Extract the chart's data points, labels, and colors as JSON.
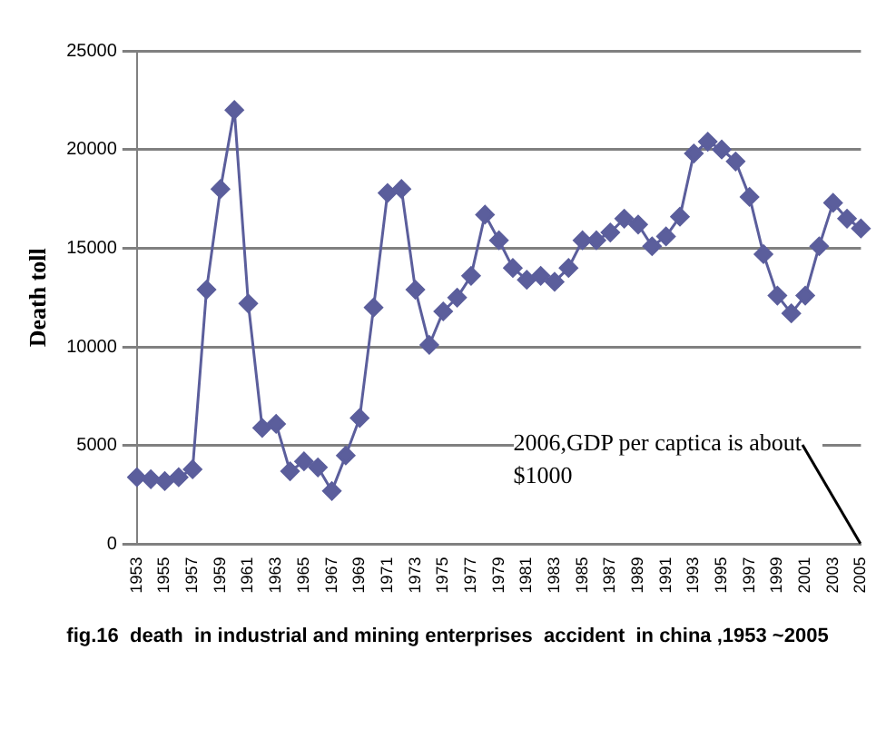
{
  "chart_data": {
    "type": "line",
    "title": "fig.16  death  in industrial and mining enterprises  accident  in china ,1953 ~2005",
    "ylabel": "Death toll",
    "categories": [
      "1953",
      null,
      "1955",
      null,
      "1957",
      null,
      "1959",
      null,
      "1961",
      null,
      "1963",
      null,
      "1965",
      null,
      "1967",
      null,
      "1969",
      null,
      "1971",
      null,
      "1973",
      null,
      "1975",
      null,
      "1977",
      null,
      "1979",
      null,
      "1981",
      null,
      "1983",
      null,
      "1985",
      null,
      "1987",
      null,
      "1989",
      null,
      "1991",
      null,
      "1993",
      null,
      "1995",
      null,
      "1997",
      null,
      "1999",
      null,
      "2001",
      null,
      "2003",
      null,
      "2005"
    ],
    "series": [
      {
        "color": "#5b5e9c",
        "values": [
          3400,
          3300,
          3200,
          3400,
          3800,
          12900,
          18000,
          22000,
          12200,
          5900,
          6100,
          3700,
          4200,
          3900,
          2700,
          4500,
          6400,
          12000,
          17800,
          18000,
          12900,
          10100,
          11800,
          12500,
          13600,
          16700,
          15400,
          14000,
          13400,
          13600,
          13300,
          14000,
          15400,
          15400,
          15800,
          16500,
          16200,
          15100,
          15600,
          16600,
          19800,
          20400,
          20000,
          19400,
          17600,
          14700,
          12600,
          11700,
          12600,
          15100,
          17300,
          16500,
          16000
        ]
      }
    ],
    "ylim": [
      0,
      25000
    ],
    "yticks": [
      0,
      5000,
      10000,
      15000,
      20000,
      25000
    ],
    "grid": "y",
    "legend": false,
    "marker": "diamond",
    "line_style": "solid",
    "annotations": [
      "2006,GDP per captica is about $1000"
    ]
  }
}
